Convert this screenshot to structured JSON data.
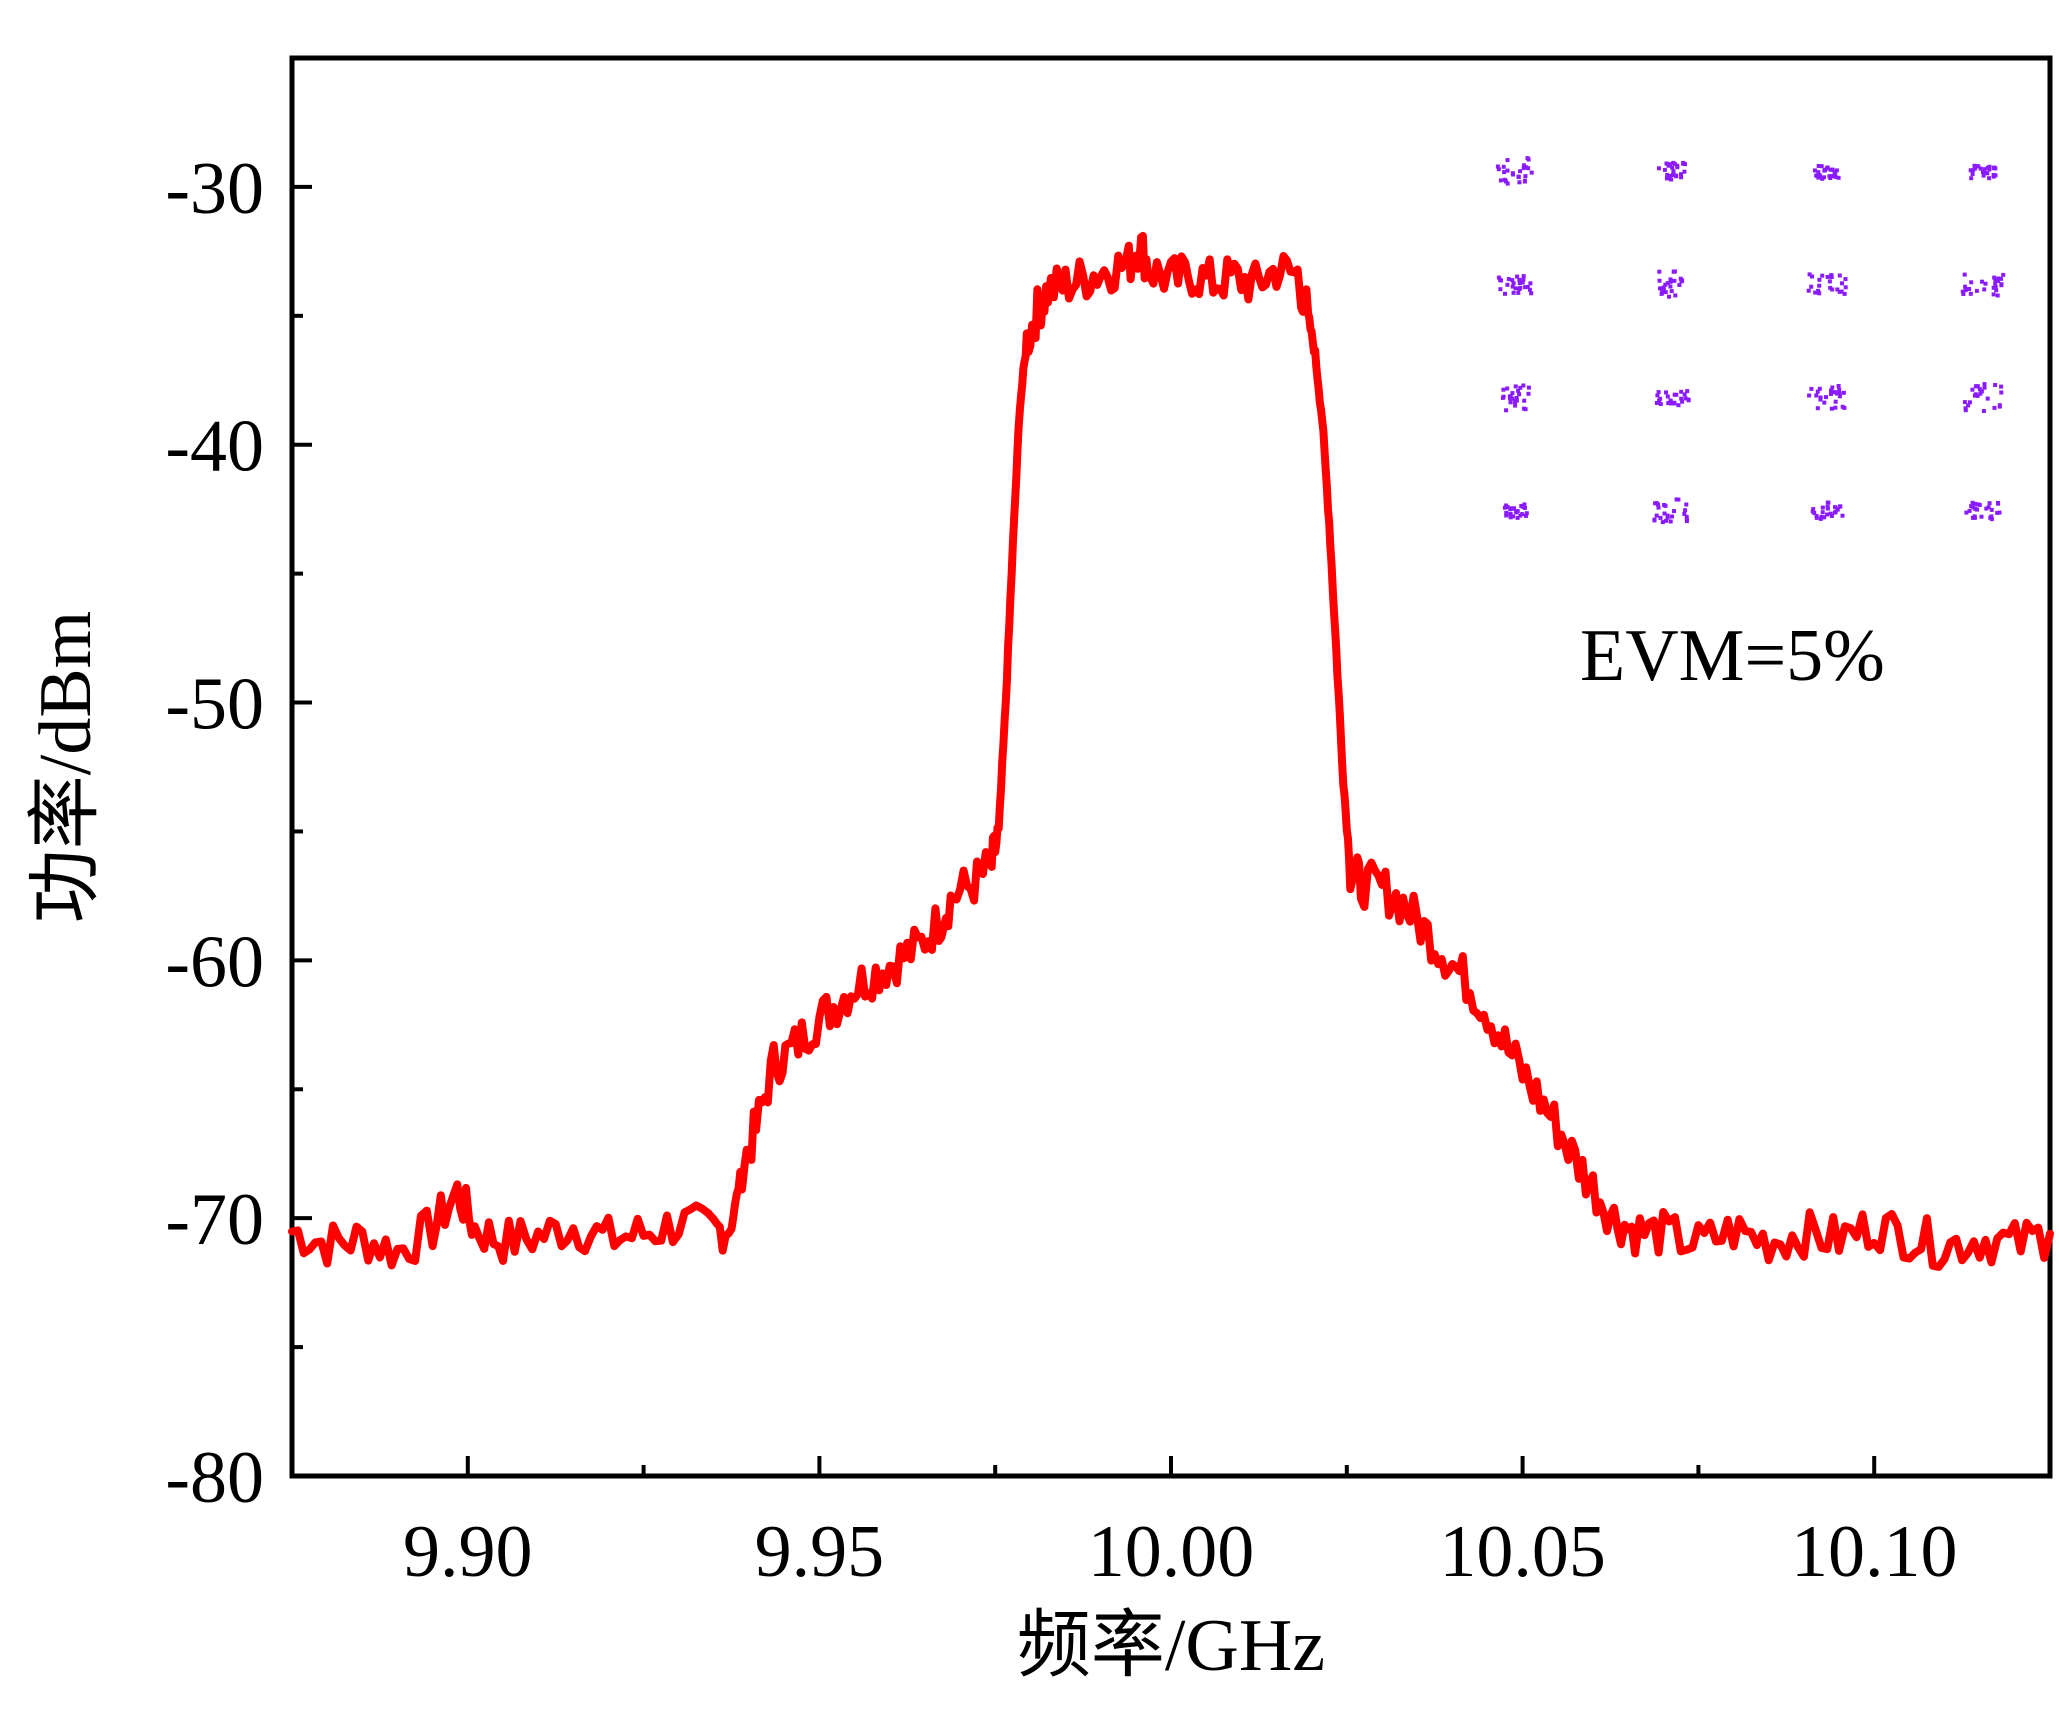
{
  "chart_data": {
    "type": "line",
    "xlabel": "频率/GHz",
    "ylabel": "功率/dBm",
    "xlim": [
      9.875,
      10.125
    ],
    "ylim": [
      -80,
      -25
    ],
    "x_ticks": [
      9.9,
      9.95,
      10.0,
      10.05,
      10.1
    ],
    "x_tick_labels": [
      "9.90",
      "9.95",
      "10.00",
      "10.05",
      "10.10"
    ],
    "y_ticks": [
      -80,
      -70,
      -60,
      -50,
      -40,
      -30
    ],
    "y_tick_labels": [
      "-80",
      "-70",
      "-60",
      "-50",
      "-40",
      "-30"
    ],
    "grid": false,
    "annotation": "EVM=5%",
    "series": [
      {
        "color": "#ff0000",
        "points": [
          [
            9.875,
            -70.5
          ],
          [
            9.88,
            -71.0
          ],
          [
            9.885,
            -70.8
          ],
          [
            9.89,
            -71.3
          ],
          [
            9.895,
            -70.4
          ],
          [
            9.8985,
            -69.0
          ],
          [
            9.901,
            -70.4
          ],
          [
            9.905,
            -70.9
          ],
          [
            9.91,
            -70.7
          ],
          [
            9.915,
            -70.3
          ],
          [
            9.92,
            -70.8
          ],
          [
            9.925,
            -70.6
          ],
          [
            9.93,
            -70.2
          ],
          [
            9.935,
            -70.5
          ],
          [
            9.9375,
            -70.3
          ],
          [
            9.939,
            -68.0
          ],
          [
            9.941,
            -66.5
          ],
          [
            9.9435,
            -64.0
          ],
          [
            9.946,
            -63.5
          ],
          [
            9.949,
            -62.5
          ],
          [
            9.952,
            -61.8
          ],
          [
            9.955,
            -61.0
          ],
          [
            9.958,
            -60.5
          ],
          [
            9.961,
            -60.0
          ],
          [
            9.964,
            -59.5
          ],
          [
            9.967,
            -58.5
          ],
          [
            9.969,
            -57.5
          ],
          [
            9.972,
            -57.0
          ],
          [
            9.9745,
            -56.3
          ],
          [
            9.9755,
            -55.0
          ],
          [
            9.9765,
            -50.0
          ],
          [
            9.9775,
            -44.0
          ],
          [
            9.9785,
            -38.5
          ],
          [
            9.9795,
            -36.0
          ],
          [
            9.981,
            -34.8
          ],
          [
            9.9825,
            -34.0
          ],
          [
            9.985,
            -33.8
          ],
          [
            9.988,
            -33.5
          ],
          [
            9.991,
            -33.2
          ],
          [
            9.994,
            -33.0
          ],
          [
            9.9955,
            -32.2
          ],
          [
            9.997,
            -33.2
          ],
          [
            10.0,
            -33.6
          ],
          [
            10.003,
            -33.4
          ],
          [
            10.006,
            -33.7
          ],
          [
            10.009,
            -33.5
          ],
          [
            10.012,
            -33.8
          ],
          [
            10.015,
            -33.2
          ],
          [
            10.018,
            -33.4
          ],
          [
            10.0195,
            -35.0
          ],
          [
            10.0205,
            -36.5
          ],
          [
            10.0215,
            -39.0
          ],
          [
            10.0225,
            -43.0
          ],
          [
            10.0235,
            -48.0
          ],
          [
            10.0245,
            -53.0
          ],
          [
            10.0255,
            -56.5
          ],
          [
            10.027,
            -57.0
          ],
          [
            10.03,
            -57.2
          ],
          [
            10.033,
            -57.8
          ],
          [
            10.036,
            -58.8
          ],
          [
            10.039,
            -59.8
          ],
          [
            10.042,
            -60.8
          ],
          [
            10.045,
            -62.0
          ],
          [
            10.048,
            -63.5
          ],
          [
            10.051,
            -64.8
          ],
          [
            10.054,
            -66.0
          ],
          [
            10.057,
            -67.5
          ],
          [
            10.06,
            -68.8
          ],
          [
            10.063,
            -70.0
          ],
          [
            10.066,
            -70.5
          ],
          [
            10.07,
            -70.6
          ],
          [
            10.075,
            -71.0
          ],
          [
            10.08,
            -70.5
          ],
          [
            10.085,
            -70.9
          ],
          [
            10.09,
            -70.6
          ],
          [
            10.095,
            -70.8
          ],
          [
            10.1,
            -70.3
          ],
          [
            10.105,
            -70.7
          ],
          [
            10.11,
            -71.1
          ],
          [
            10.115,
            -70.8
          ],
          [
            10.12,
            -71.0
          ],
          [
            10.125,
            -70.6
          ]
        ]
      }
    ]
  },
  "inset": {
    "name": "16-QAM constellation",
    "color": "#8a1aff",
    "rows": 4,
    "cols": 4
  }
}
